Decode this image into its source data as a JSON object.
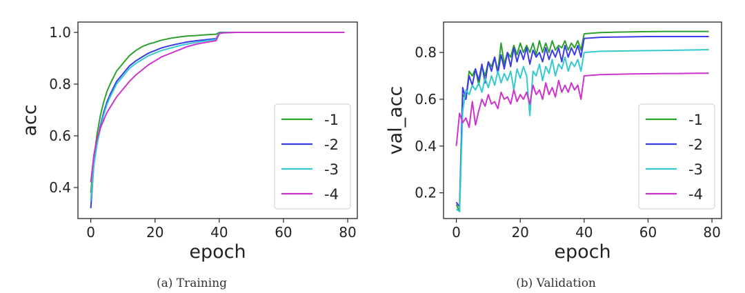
{
  "chart_data": [
    {
      "type": "line",
      "xlabel": "epoch",
      "ylabel": "acc",
      "caption": "(a) Training",
      "xlim": [
        -4,
        83
      ],
      "ylim": [
        0.28,
        1.04
      ],
      "xticks": [
        0,
        20,
        40,
        60,
        80
      ],
      "yticks": [
        0.4,
        0.6,
        0.8,
        1.0
      ],
      "xtick_labels": [
        "0",
        "20",
        "40",
        "60",
        "80"
      ],
      "ytick_labels": [
        "0.4",
        "0.6",
        "0.8",
        "1.0"
      ],
      "legend_position": "lower-right",
      "series": [
        {
          "name": "-1",
          "color": "#2ca02c",
          "x": [
            0,
            1,
            2,
            3,
            4,
            5,
            6,
            8,
            10,
            12,
            14,
            16,
            18,
            20,
            22,
            25,
            28,
            30,
            33,
            36,
            39,
            40,
            41,
            45,
            50,
            60,
            70,
            79
          ],
          "y": [
            0.38,
            0.52,
            0.61,
            0.68,
            0.73,
            0.77,
            0.8,
            0.85,
            0.88,
            0.91,
            0.93,
            0.945,
            0.955,
            0.962,
            0.97,
            0.978,
            0.983,
            0.986,
            0.988,
            0.991,
            0.993,
            1.0,
            1.0,
            1.0,
            1.0,
            1.0,
            1.0,
            1.0
          ]
        },
        {
          "name": "-2",
          "color": "#3a3ae8",
          "x": [
            0,
            1,
            2,
            3,
            4,
            5,
            6,
            8,
            10,
            12,
            14,
            16,
            18,
            20,
            22,
            25,
            28,
            30,
            33,
            36,
            39,
            40,
            41,
            45,
            50,
            60,
            70,
            79
          ],
          "y": [
            0.32,
            0.5,
            0.58,
            0.64,
            0.69,
            0.73,
            0.76,
            0.81,
            0.84,
            0.87,
            0.89,
            0.905,
            0.92,
            0.93,
            0.94,
            0.95,
            0.958,
            0.963,
            0.968,
            0.972,
            0.976,
            0.998,
            0.999,
            1.0,
            1.0,
            1.0,
            1.0,
            1.0
          ]
        },
        {
          "name": "-3",
          "color": "#33c9cf",
          "x": [
            0,
            1,
            2,
            3,
            4,
            5,
            6,
            8,
            10,
            12,
            14,
            16,
            18,
            20,
            22,
            25,
            28,
            30,
            33,
            36,
            39,
            40,
            41,
            45,
            50,
            60,
            70,
            79
          ],
          "y": [
            0.35,
            0.49,
            0.57,
            0.63,
            0.68,
            0.72,
            0.75,
            0.8,
            0.83,
            0.86,
            0.88,
            0.895,
            0.91,
            0.92,
            0.93,
            0.94,
            0.95,
            0.955,
            0.962,
            0.968,
            0.973,
            0.997,
            0.999,
            1.0,
            1.0,
            1.0,
            1.0,
            1.0
          ]
        },
        {
          "name": "-4",
          "color": "#cc33cc",
          "x": [
            0,
            1,
            2,
            3,
            4,
            5,
            6,
            8,
            10,
            12,
            14,
            16,
            18,
            20,
            22,
            25,
            28,
            30,
            33,
            36,
            39,
            40,
            41,
            45,
            50,
            60,
            70,
            79
          ],
          "y": [
            0.42,
            0.53,
            0.59,
            0.63,
            0.66,
            0.69,
            0.71,
            0.75,
            0.78,
            0.81,
            0.835,
            0.855,
            0.875,
            0.89,
            0.905,
            0.92,
            0.935,
            0.945,
            0.955,
            0.962,
            0.968,
            0.995,
            0.998,
            1.0,
            1.0,
            1.0,
            1.0,
            1.0
          ]
        }
      ]
    },
    {
      "type": "line",
      "xlabel": "epoch",
      "ylabel": "val_acc",
      "caption": "(b) Validation",
      "xlim": [
        -4,
        83
      ],
      "ylim": [
        0.09,
        0.93
      ],
      "xticks": [
        0,
        20,
        40,
        60,
        80
      ],
      "yticks": [
        0.2,
        0.4,
        0.6,
        0.8
      ],
      "xtick_labels": [
        "0",
        "20",
        "40",
        "60",
        "80"
      ],
      "ytick_labels": [
        "0.2",
        "0.4",
        "0.6",
        "0.8"
      ],
      "legend_position": "lower-right",
      "series": [
        {
          "name": "-1",
          "color": "#2ca02c",
          "x": [
            0,
            1,
            2,
            3,
            4,
            5,
            6,
            7,
            8,
            9,
            10,
            11,
            12,
            13,
            14,
            15,
            16,
            17,
            18,
            19,
            20,
            21,
            22,
            23,
            24,
            25,
            26,
            27,
            28,
            29,
            30,
            31,
            32,
            33,
            34,
            35,
            36,
            37,
            38,
            39,
            40,
            45,
            50,
            55,
            60,
            65,
            70,
            75,
            79
          ],
          "y": [
            0.15,
            0.12,
            0.62,
            0.6,
            0.72,
            0.7,
            0.73,
            0.66,
            0.74,
            0.7,
            0.76,
            0.74,
            0.78,
            0.72,
            0.84,
            0.75,
            0.8,
            0.78,
            0.83,
            0.79,
            0.84,
            0.8,
            0.83,
            0.8,
            0.84,
            0.79,
            0.85,
            0.8,
            0.84,
            0.8,
            0.85,
            0.81,
            0.83,
            0.82,
            0.85,
            0.81,
            0.84,
            0.82,
            0.85,
            0.81,
            0.88,
            0.885,
            0.887,
            0.888,
            0.889,
            0.89,
            0.89,
            0.89,
            0.89
          ]
        },
        {
          "name": "-2",
          "color": "#3a3ae8",
          "x": [
            0,
            1,
            2,
            3,
            4,
            5,
            6,
            7,
            8,
            9,
            10,
            11,
            12,
            13,
            14,
            15,
            16,
            17,
            18,
            19,
            20,
            21,
            22,
            23,
            24,
            25,
            26,
            27,
            28,
            29,
            30,
            31,
            32,
            33,
            34,
            35,
            36,
            37,
            38,
            39,
            40,
            45,
            50,
            55,
            60,
            65,
            70,
            75,
            79
          ],
          "y": [
            0.16,
            0.14,
            0.65,
            0.6,
            0.7,
            0.66,
            0.73,
            0.68,
            0.75,
            0.67,
            0.76,
            0.72,
            0.78,
            0.71,
            0.79,
            0.73,
            0.8,
            0.74,
            0.82,
            0.76,
            0.81,
            0.77,
            0.82,
            0.75,
            0.81,
            0.78,
            0.8,
            0.76,
            0.82,
            0.77,
            0.81,
            0.78,
            0.82,
            0.76,
            0.83,
            0.78,
            0.82,
            0.79,
            0.83,
            0.78,
            0.86,
            0.865,
            0.866,
            0.867,
            0.868,
            0.868,
            0.868,
            0.868,
            0.868
          ]
        },
        {
          "name": "-3",
          "color": "#33c9cf",
          "x": [
            0,
            1,
            2,
            3,
            4,
            5,
            6,
            7,
            8,
            9,
            10,
            11,
            12,
            13,
            14,
            15,
            16,
            17,
            18,
            19,
            20,
            21,
            22,
            23,
            24,
            25,
            26,
            27,
            28,
            29,
            30,
            31,
            32,
            33,
            34,
            35,
            36,
            37,
            38,
            39,
            40,
            45,
            50,
            55,
            60,
            65,
            70,
            75,
            79
          ],
          "y": [
            0.13,
            0.12,
            0.55,
            0.64,
            0.62,
            0.66,
            0.64,
            0.67,
            0.63,
            0.69,
            0.65,
            0.7,
            0.66,
            0.72,
            0.67,
            0.71,
            0.68,
            0.72,
            0.64,
            0.73,
            0.69,
            0.74,
            0.7,
            0.53,
            0.72,
            0.7,
            0.75,
            0.68,
            0.74,
            0.71,
            0.77,
            0.7,
            0.75,
            0.73,
            0.78,
            0.72,
            0.76,
            0.74,
            0.77,
            0.72,
            0.8,
            0.805,
            0.806,
            0.807,
            0.808,
            0.809,
            0.81,
            0.811,
            0.812
          ]
        },
        {
          "name": "-4",
          "color": "#cc33cc",
          "x": [
            0,
            1,
            2,
            3,
            4,
            5,
            6,
            7,
            8,
            9,
            10,
            11,
            12,
            13,
            14,
            15,
            16,
            17,
            18,
            19,
            20,
            21,
            22,
            23,
            24,
            25,
            26,
            27,
            28,
            29,
            30,
            31,
            32,
            33,
            34,
            35,
            36,
            37,
            38,
            39,
            40,
            45,
            50,
            55,
            60,
            65,
            70,
            75,
            79
          ],
          "y": [
            0.4,
            0.54,
            0.5,
            0.52,
            0.48,
            0.59,
            0.49,
            0.55,
            0.6,
            0.57,
            0.62,
            0.58,
            0.59,
            0.56,
            0.63,
            0.6,
            0.61,
            0.58,
            0.64,
            0.59,
            0.62,
            0.6,
            0.63,
            0.58,
            0.66,
            0.62,
            0.64,
            0.6,
            0.67,
            0.62,
            0.65,
            0.61,
            0.68,
            0.63,
            0.66,
            0.63,
            0.67,
            0.64,
            0.66,
            0.6,
            0.7,
            0.705,
            0.707,
            0.708,
            0.709,
            0.71,
            0.71,
            0.711,
            0.711
          ]
        }
      ]
    }
  ]
}
